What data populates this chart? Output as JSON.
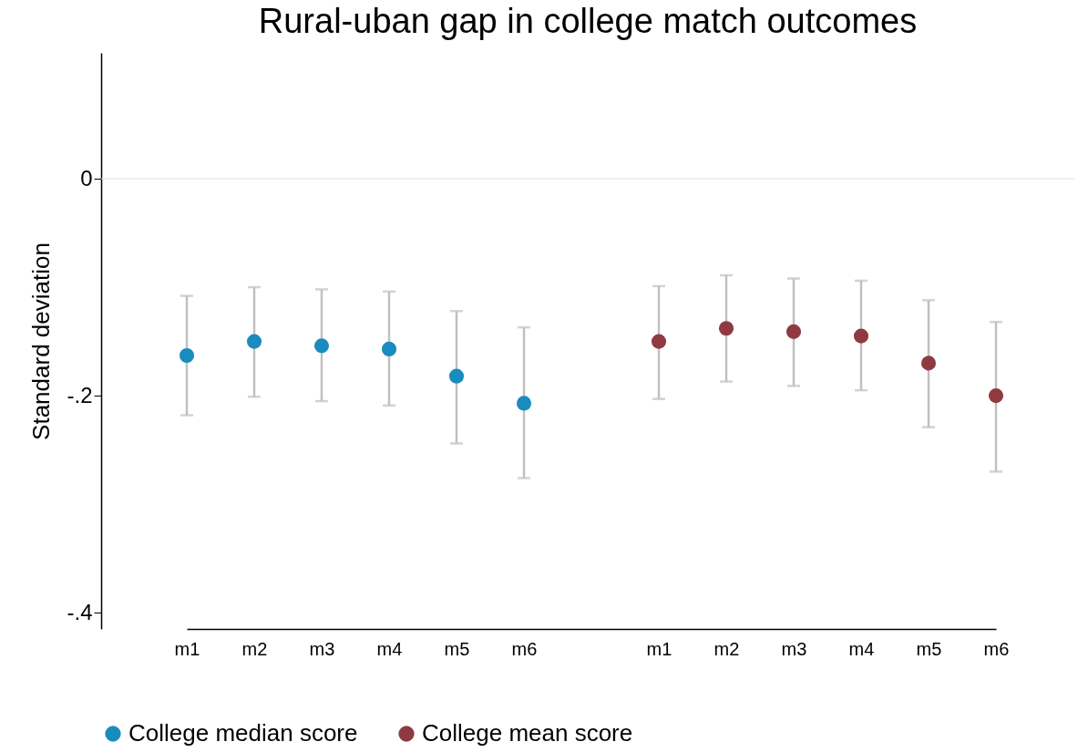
{
  "chart_data": {
    "type": "scatter",
    "title": "Rural-uban gap in college match outcomes",
    "ylabel": "Standard deviation",
    "categories": [
      "m1",
      "m2",
      "m3",
      "m4",
      "m5",
      "m6",
      null,
      "m1",
      "m2",
      "m3",
      "m4",
      "m5",
      "m6"
    ],
    "series": [
      {
        "name": "College median score",
        "color": "#1a8bbf",
        "values": [
          -0.163,
          -0.15,
          -0.154,
          -0.157,
          -0.182,
          -0.207,
          null,
          null,
          null,
          null,
          null,
          null,
          null
        ],
        "errors": [
          [
            -0.218,
            -0.108
          ],
          [
            -0.201,
            -0.1
          ],
          [
            -0.205,
            -0.102
          ],
          [
            -0.209,
            -0.104
          ],
          [
            -0.244,
            -0.122
          ],
          [
            -0.276,
            -0.137
          ],
          null,
          null,
          null,
          null,
          null,
          null,
          null
        ]
      },
      {
        "name": "College mean score",
        "color": "#8f3a40",
        "values": [
          null,
          null,
          null,
          null,
          null,
          null,
          null,
          -0.15,
          -0.138,
          -0.141,
          -0.145,
          -0.17,
          -0.2
        ],
        "errors": [
          null,
          null,
          null,
          null,
          null,
          null,
          null,
          [
            -0.203,
            -0.099
          ],
          [
            -0.187,
            -0.089
          ],
          [
            -0.191,
            -0.092
          ],
          [
            -0.195,
            -0.094
          ],
          [
            -0.229,
            -0.112
          ],
          [
            -0.27,
            -0.132
          ]
        ]
      }
    ],
    "ylim": [
      -0.415,
      0.116
    ],
    "yticks": [
      {
        "value": -0.4,
        "label": "-.4"
      },
      {
        "value": -0.2,
        "label": "-.2"
      },
      0
    ],
    "ref_lines": [
      {
        "axis": "y",
        "value": 0,
        "color": "#dddddd"
      }
    ],
    "marker": "circle",
    "legend": "bottom"
  }
}
